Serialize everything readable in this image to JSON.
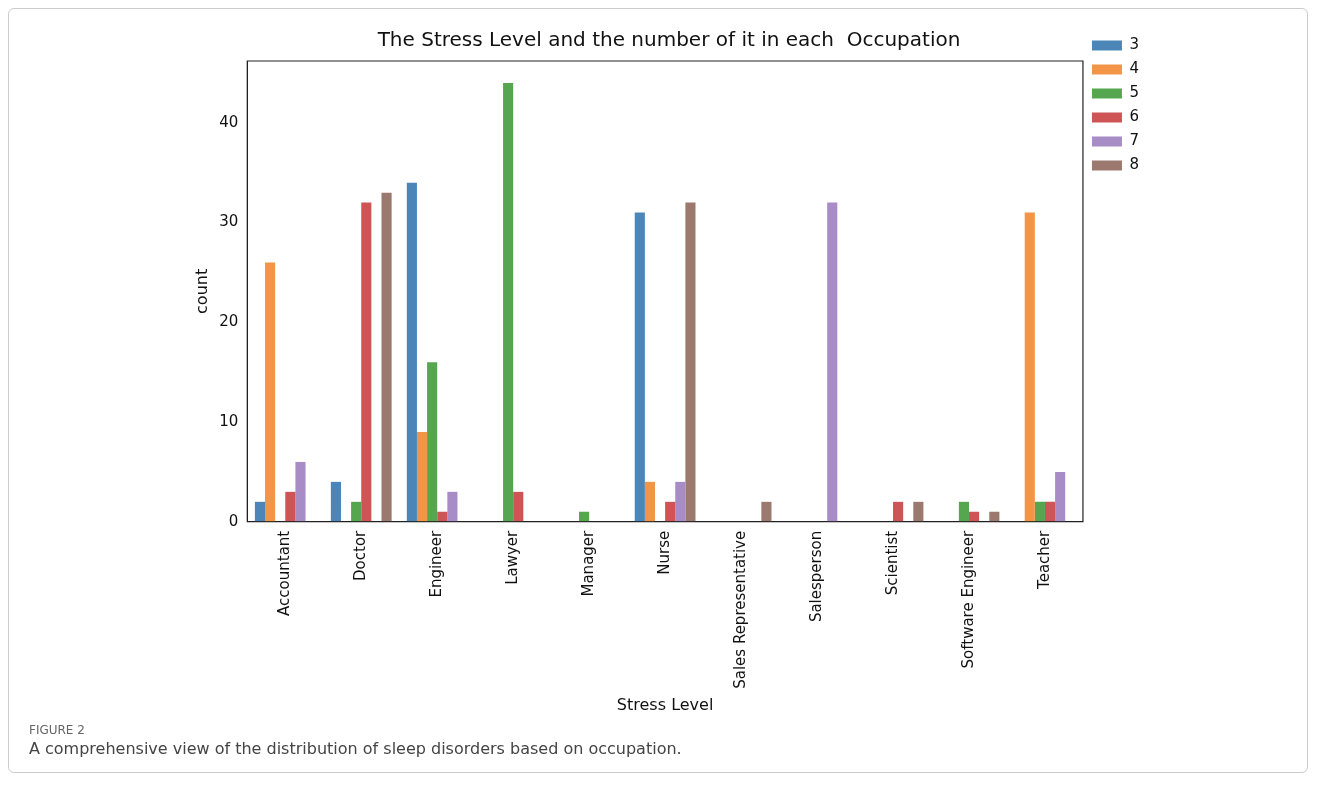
{
  "chart_data": {
    "type": "bar",
    "title": "The Stress Level and the number of it in each  Occupation",
    "xlabel": "Stress Level",
    "ylabel": "count",
    "categories": [
      "Accountant",
      "Doctor",
      "Engineer",
      "Lawyer",
      "Manager",
      "Nurse",
      "Sales Representative",
      "Salesperson",
      "Scientist",
      "Software Engineer",
      "Teacher"
    ],
    "series": [
      {
        "name": "3",
        "color": "#4c86b8",
        "values": [
          2,
          4,
          34,
          null,
          null,
          31,
          null,
          null,
          null,
          null,
          null
        ]
      },
      {
        "name": "4",
        "color": "#f39546",
        "values": [
          26,
          null,
          9,
          null,
          null,
          4,
          null,
          null,
          null,
          null,
          31
        ]
      },
      {
        "name": "5",
        "color": "#55a64f",
        "values": [
          null,
          2,
          16,
          44,
          1,
          null,
          null,
          null,
          null,
          2,
          2
        ]
      },
      {
        "name": "6",
        "color": "#cf5455",
        "values": [
          3,
          32,
          1,
          3,
          null,
          2,
          null,
          null,
          2,
          1,
          2
        ]
      },
      {
        "name": "7",
        "color": "#a78cc6",
        "values": [
          6,
          null,
          3,
          null,
          null,
          4,
          null,
          32,
          null,
          null,
          5
        ]
      },
      {
        "name": "8",
        "color": "#9b796f",
        "values": [
          null,
          33,
          null,
          null,
          null,
          32,
          2,
          null,
          2,
          1,
          null
        ]
      }
    ],
    "ylim": [
      0,
      46.2
    ],
    "yticks": [
      0,
      10,
      20,
      30,
      40
    ],
    "grid": false,
    "legend": "top right",
    "annotations": [
      "FIGURE 2",
      "A comprehensive view of the distribution of sleep disorders based on occupation."
    ]
  }
}
